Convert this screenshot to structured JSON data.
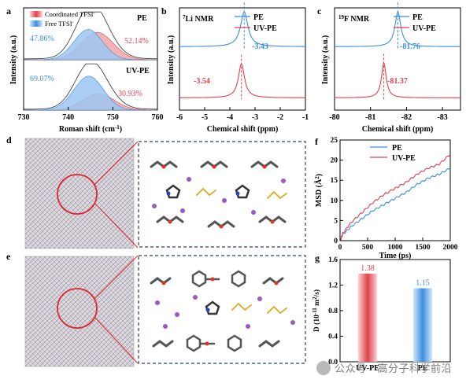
{
  "panels": {
    "a": {
      "letter": "a",
      "xlabel": "Roman shift (cm",
      "xlabel_sup": "-1",
      "xlabel_end": ")",
      "ylabel": "Intensity (a.u.)"
    },
    "b": {
      "letter": "b",
      "title_sup": "7",
      "title": "Li NMR",
      "xlabel": "Chemical shift (ppm)",
      "ylabel": "Intensity (a.u.)"
    },
    "c": {
      "letter": "c",
      "title_sup": "19",
      "title": "F NMR",
      "xlabel": "Chemical shift (ppm)",
      "ylabel": "Intensity (a.u.)"
    },
    "d": {
      "letter": "d"
    },
    "e": {
      "letter": "e"
    },
    "f": {
      "letter": "f",
      "xlabel": "Time (ps)",
      "ylabel_main": "MSD (",
      "ylabel_sup": "2",
      "ylabel_end": ")"
    },
    "g": {
      "letter": "g",
      "ylabel_main": "D (10",
      "ylabel_sup": "-11",
      "ylabel_mid": " m",
      "ylabel_sup2": "2",
      "ylabel_end": "/s)"
    }
  },
  "legends": {
    "a": {
      "coordinated": "Coordinated TFSI",
      "free": "Free TFSI",
      "sup": "-"
    },
    "pe": "PE",
    "uvpe": "UV-PE"
  },
  "colors": {
    "pe": "#3b8ee0",
    "uvpe": "#e0414b",
    "envelope": "#444444",
    "coord_fill": "#f2a4a8",
    "free_fill": "#9cc6f2"
  },
  "chart_data": [
    {
      "id": "a",
      "type": "area",
      "xlim": [
        730,
        760
      ],
      "xticks": [
        730,
        740,
        750,
        760
      ],
      "subplots": [
        {
          "label": "PE",
          "free_pct": "47.86%",
          "coord_pct": "52.14%",
          "free_peak": {
            "center": 744.5,
            "height": 0.62,
            "width": 3.2
          },
          "coord_peak": {
            "center": 746.5,
            "height": 0.56,
            "width": 3.6
          }
        },
        {
          "label": "UV-PE",
          "free_pct": "69.07%",
          "coord_pct": "30.93%",
          "free_peak": {
            "center": 744.6,
            "height": 0.72,
            "width": 3.3
          },
          "coord_peak": {
            "center": 746.8,
            "height": 0.34,
            "width": 3.6
          }
        }
      ]
    },
    {
      "id": "b",
      "type": "line",
      "xlim": [
        -6,
        -1
      ],
      "reversed": true,
      "xticks": [
        -6,
        -5,
        -4,
        -3,
        -2,
        -1
      ],
      "series": [
        {
          "name": "PE",
          "peak": -3.43,
          "peak_label": "-3.43",
          "baseline": 0.62,
          "height": 0.34,
          "width": 0.18
        },
        {
          "name": "UV-PE",
          "peak": -3.54,
          "peak_label": "-3.54",
          "baseline": 0.12,
          "height": 0.33,
          "width": 0.15
        }
      ]
    },
    {
      "id": "c",
      "type": "line",
      "xlim": [
        -80,
        -83.5
      ],
      "xticks": [
        -80,
        -81,
        -82,
        -83
      ],
      "series": [
        {
          "name": "PE",
          "peak": -81.76,
          "peak_label": "-81.76",
          "baseline": 0.62,
          "height": 0.34,
          "width": 0.1
        },
        {
          "name": "UV-PE",
          "peak": -81.37,
          "peak_label": "-81.37",
          "baseline": 0.12,
          "height": 0.34,
          "width": 0.08
        }
      ]
    },
    {
      "id": "f",
      "type": "line",
      "xlim": [
        0,
        2000
      ],
      "ylim": [
        0,
        25
      ],
      "xticks": [
        0,
        500,
        1000,
        1500,
        2000
      ],
      "yticks": [
        0,
        5,
        10,
        15,
        20,
        25
      ],
      "series": [
        {
          "name": "PE",
          "x": [
            0,
            50,
            200,
            400,
            600,
            800,
            1000,
            1200,
            1400,
            1600,
            1800,
            2000
          ],
          "y": [
            0,
            1.5,
            3.5,
            5.5,
            7.5,
            9.0,
            10.5,
            12.0,
            14.0,
            15.5,
            16.5,
            18.0
          ]
        },
        {
          "name": "UV-PE",
          "x": [
            0,
            50,
            200,
            400,
            600,
            800,
            1000,
            1200,
            1400,
            1600,
            1800,
            2000
          ],
          "y": [
            0,
            1.8,
            4.5,
            7.0,
            9.5,
            11.5,
            13.0,
            14.5,
            16.5,
            18.0,
            19.0,
            21.5
          ]
        }
      ]
    },
    {
      "id": "g",
      "type": "bar",
      "ylim": [
        0,
        1.6
      ],
      "yticks": [
        0,
        0.4,
        0.8,
        1.2,
        1.6
      ],
      "categories": [
        "UV-PE",
        "PE"
      ],
      "values": [
        1.38,
        1.15
      ],
      "value_labels": [
        "1.38",
        "1.15"
      ]
    }
  ],
  "watermark": {
    "text": "公众号 · 高分子科学前沿"
  }
}
